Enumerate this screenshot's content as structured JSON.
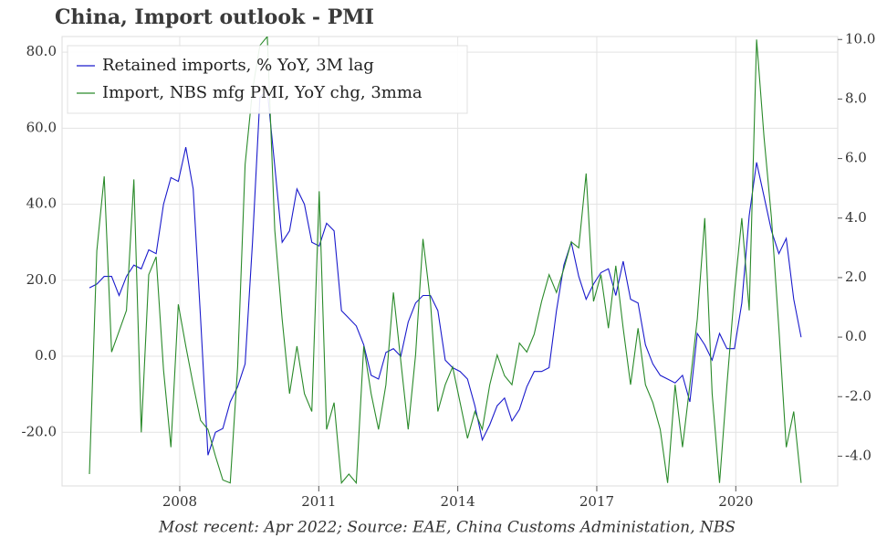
{
  "chart_data": {
    "type": "line",
    "title": "China, Import outlook - PMI",
    "footnote": "Most recent: Apr 2022; Source: EAE, China Customs Administation, NBS",
    "x": [
      2006.05,
      2006.21,
      2006.37,
      2006.53,
      2006.69,
      2006.85,
      2007.01,
      2007.17,
      2007.33,
      2007.49,
      2007.65,
      2007.81,
      2007.97,
      2008.13,
      2008.29,
      2008.45,
      2008.61,
      2008.77,
      2008.93,
      2009.09,
      2009.25,
      2009.41,
      2009.57,
      2009.73,
      2009.89,
      2010.05,
      2010.21,
      2010.37,
      2010.53,
      2010.69,
      2010.85,
      2011.01,
      2011.17,
      2011.33,
      2011.49,
      2011.65,
      2011.81,
      2011.97,
      2012.13,
      2012.29,
      2012.45,
      2012.61,
      2012.77,
      2012.93,
      2013.09,
      2013.25,
      2013.41,
      2013.57,
      2013.73,
      2013.89,
      2014.05,
      2014.21,
      2014.37,
      2014.53,
      2014.69,
      2014.85,
      2015.01,
      2015.17,
      2015.33,
      2015.49,
      2015.65,
      2015.81,
      2015.97,
      2016.13,
      2016.29,
      2016.45,
      2016.61,
      2016.77,
      2016.93,
      2017.09,
      2017.25,
      2017.41,
      2017.57,
      2017.73,
      2017.89,
      2018.05,
      2018.21,
      2018.37,
      2018.53,
      2018.69,
      2018.85,
      2019.01,
      2019.17,
      2019.33,
      2019.49,
      2019.65,
      2019.81,
      2019.97,
      2020.13,
      2020.29,
      2020.45,
      2020.61,
      2020.77,
      2020.93,
      2021.09,
      2021.25,
      2021.41
    ],
    "series": [
      {
        "name": "Retained imports, % YoY, 3M lag",
        "color": "#1a1acc",
        "axis": "y",
        "values": [
          18,
          19,
          21,
          21,
          16,
          21,
          24,
          23,
          28,
          27,
          40,
          47,
          46,
          55,
          44,
          10,
          -26,
          -20,
          -19,
          -12,
          -8,
          -2,
          30,
          68,
          70,
          50,
          30,
          33,
          44,
          40,
          30,
          29,
          35,
          33,
          12,
          10,
          8,
          3,
          -5,
          -6,
          1,
          2,
          0,
          9,
          14,
          16,
          16,
          12,
          -1,
          -3,
          -4,
          -6,
          -13,
          -22,
          -18,
          -13,
          -11,
          -17,
          -14,
          -8,
          -4,
          -4,
          -3,
          12,
          24,
          30,
          21,
          15,
          19,
          22,
          23,
          16,
          25,
          15,
          14,
          3,
          -2,
          -5,
          -6,
          -7,
          -5,
          -12,
          6,
          3,
          -1,
          6,
          2,
          2,
          14,
          37,
          51,
          42,
          33,
          27,
          31,
          15,
          5
        ]
      },
      {
        "name": "Import, NBS mfg PMI, YoY chg, 3mma",
        "color": "#2a8a2a",
        "axis": "y2",
        "values": [
          -4.6,
          2.9,
          5.4,
          -0.5,
          0.2,
          0.9,
          5.3,
          -3.2,
          2.1,
          2.7,
          -1.1,
          -3.7,
          1.1,
          -0.3,
          -1.6,
          -2.8,
          -3.1,
          -4.0,
          -4.8,
          -4.9,
          -1.0,
          5.8,
          8.3,
          9.8,
          10.1,
          3.6,
          0.6,
          -1.9,
          -0.3,
          -1.9,
          -2.5,
          4.9,
          -3.1,
          -2.2,
          -4.9,
          -4.6,
          -4.9,
          -0.3,
          -1.9,
          -3.1,
          -1.6,
          1.5,
          -0.8,
          -3.1,
          -0.6,
          3.3,
          1.2,
          -2.5,
          -1.6,
          -1.0,
          -2.2,
          -3.4,
          -2.5,
          -3.1,
          -1.6,
          -0.6,
          -1.3,
          -1.6,
          -0.2,
          -0.5,
          0.1,
          1.2,
          2.1,
          1.5,
          2.3,
          3.2,
          3.0,
          5.5,
          1.2,
          2.1,
          0.3,
          2.4,
          0.3,
          -1.6,
          0.3,
          -1.6,
          -2.2,
          -3.1,
          -4.9,
          -1.6,
          -3.7,
          -1.6,
          0.6,
          4.0,
          -1.9,
          -4.9,
          -1.6,
          1.5,
          4.0,
          0.9,
          10.0,
          6.7,
          4.0,
          0.3,
          -3.7,
          -2.5,
          -4.9
        ]
      }
    ],
    "xlim": [
      2005.46,
      2022.2
    ],
    "xticks": [
      2008,
      2011,
      2014,
      2017,
      2020
    ],
    "ylim": [
      -34.1,
      84.1
    ],
    "yticks": [
      {
        "value": -20,
        "label": "-20.0"
      },
      {
        "value": 0,
        "label": "0.0"
      },
      {
        "value": 20,
        "label": "20.0"
      },
      {
        "value": 40,
        "label": "40.0"
      },
      {
        "value": 60,
        "label": "60.0"
      },
      {
        "value": 80,
        "label": "80.0"
      }
    ],
    "y2lim": [
      -5.0,
      10.1
    ],
    "y2ticks": [
      {
        "value": -4,
        "label": "-4.0"
      },
      {
        "value": -2,
        "label": "-2.0"
      },
      {
        "value": 0,
        "label": "0.0"
      },
      {
        "value": 2,
        "label": "2.0"
      },
      {
        "value": 4,
        "label": "4.0"
      },
      {
        "value": 6,
        "label": "6.0"
      },
      {
        "value": 8,
        "label": "8.0"
      },
      {
        "value": 10,
        "label": "10.0"
      }
    ],
    "grid": true,
    "legend": "upper left"
  }
}
